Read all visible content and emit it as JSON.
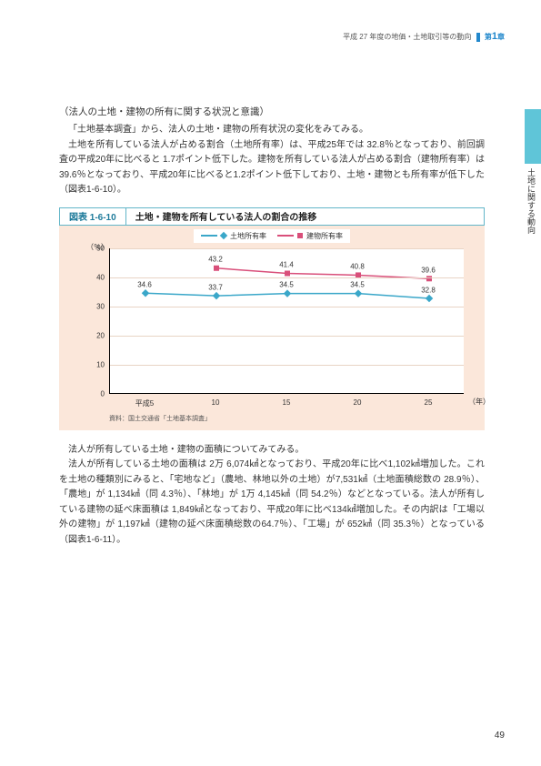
{
  "header": {
    "text": "平成 27 年度の地価・土地取引等の動向",
    "chapter_prefix": "第",
    "chapter_num": "1",
    "chapter_suffix": "章"
  },
  "side_tab": "土地に関する動向",
  "section_title": "（法人の土地・建物の所有に関する状況と意識）",
  "para1_line1": "「土地基本調査」から、法人の土地・建物の所有状況の変化をみてみる。",
  "para1_body": "土地を所有している法人が占める割合（土地所有率）は、平成25年では 32.8％となっており、前回調査の平成20年に比べると 1.7ポイント低下した。建物を所有している法人が占める割合（建物所有率）は39.6％となっており、平成20年に比べると1.2ポイント低下しており、土地・建物とも所有率が低下した（図表1-6-10）。",
  "figure": {
    "id": "図表 1-6-10",
    "title": "土地・建物を所有している法人の割合の推移"
  },
  "chart": {
    "type": "line",
    "y_unit": "（％）",
    "x_unit": "（年）",
    "ylim": [
      0,
      50
    ],
    "ytick_step": 10,
    "yticks": [
      0,
      10,
      20,
      30,
      40,
      50
    ],
    "categories": [
      "平成5",
      "10",
      "15",
      "20",
      "25"
    ],
    "series": [
      {
        "name": "土地所有率",
        "color": "#3aa7c9",
        "marker": "diamond",
        "values": [
          34.6,
          33.7,
          34.5,
          34.5,
          32.8
        ]
      },
      {
        "name": "建物所有率",
        "color": "#d94f7a",
        "marker": "square",
        "values": [
          null,
          43.2,
          41.4,
          40.8,
          39.6
        ]
      }
    ],
    "legend_labels": [
      "土地所有率",
      "建物所有率"
    ],
    "background_color": "#fbe7da",
    "plot_background": "#ffffff",
    "grid_color": "#e8d4c5",
    "label_fontsize": 8
  },
  "source": "資料：国土交通省「土地基本調査」",
  "para2_lead": "法人が所有している土地・建物の面積についてみてみる。",
  "para2_body": "法人が所有している土地の面積は 2万 6,074㎢となっており、平成20年に比べ1,102㎢増加した。これを土地の種類別にみると、「宅地など」（農地、林地以外の土地）が7,531㎢（土地面積総数の 28.9％）、「農地」が 1,134㎢（同 4.3％）、「林地」が 1万 4,145㎢（同 54.2％）などとなっている。法人が所有している建物の延べ床面積は 1,849㎢となっており、平成20年に比べ134㎢増加した。その内訳は「工場以外の建物」が 1,197㎢（建物の延べ床面積総数の64.7％）、「工場」が 652㎢（同 35.3％）となっている（図表1-6-11）。",
  "page_number": "49"
}
